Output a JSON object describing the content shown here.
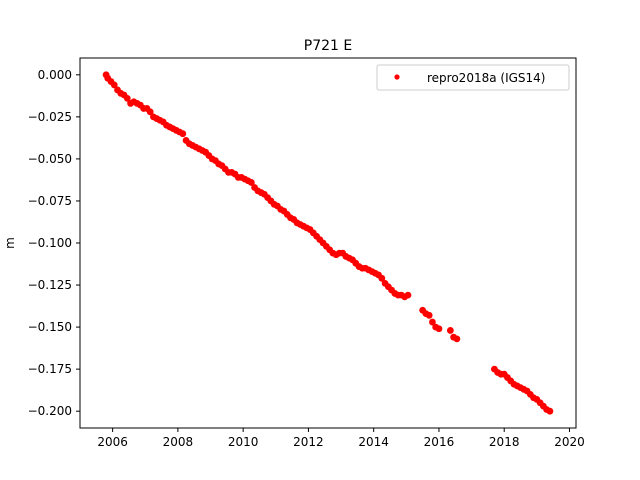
{
  "chart_data": {
    "type": "scatter",
    "title": "P721 E",
    "xlabel": "",
    "ylabel": "m",
    "xlim": [
      2005.0,
      2020.2
    ],
    "ylim": [
      -0.21,
      0.01
    ],
    "xticks": [
      2006,
      2008,
      2010,
      2012,
      2014,
      2016,
      2018,
      2020
    ],
    "yticks": [
      0.0,
      -0.025,
      -0.05,
      -0.075,
      -0.1,
      -0.125,
      -0.15,
      -0.175,
      -0.2
    ],
    "xtick_labels": [
      "2006",
      "2008",
      "2010",
      "2012",
      "2014",
      "2016",
      "2018",
      "2020"
    ],
    "ytick_labels": [
      "0.000",
      "−0.025",
      "−0.050",
      "−0.075",
      "−0.100",
      "−0.125",
      "−0.150",
      "−0.175",
      "−0.200"
    ],
    "grid": false,
    "legend_position": "top-right",
    "series": [
      {
        "name": "repro2018a (IGS14)",
        "color": "#ff0000",
        "marker": "dot",
        "points": [
          [
            2005.8,
            0.0
          ],
          [
            2005.85,
            -0.002
          ],
          [
            2005.95,
            -0.004
          ],
          [
            2006.05,
            -0.006
          ],
          [
            2006.15,
            -0.009
          ],
          [
            2006.25,
            -0.011
          ],
          [
            2006.35,
            -0.012
          ],
          [
            2006.45,
            -0.014
          ],
          [
            2006.55,
            -0.017
          ],
          [
            2006.65,
            -0.016
          ],
          [
            2006.75,
            -0.017
          ],
          [
            2006.85,
            -0.018
          ],
          [
            2006.95,
            -0.02
          ],
          [
            2007.05,
            -0.02
          ],
          [
            2007.15,
            -0.022
          ],
          [
            2007.25,
            -0.025
          ],
          [
            2007.35,
            -0.026
          ],
          [
            2007.45,
            -0.027
          ],
          [
            2007.55,
            -0.028
          ],
          [
            2007.65,
            -0.03
          ],
          [
            2007.75,
            -0.031
          ],
          [
            2007.85,
            -0.032
          ],
          [
            2007.95,
            -0.033
          ],
          [
            2008.05,
            -0.034
          ],
          [
            2008.15,
            -0.035
          ],
          [
            2008.25,
            -0.039
          ],
          [
            2008.35,
            -0.041
          ],
          [
            2008.45,
            -0.042
          ],
          [
            2008.55,
            -0.043
          ],
          [
            2008.65,
            -0.044
          ],
          [
            2008.75,
            -0.045
          ],
          [
            2008.85,
            -0.046
          ],
          [
            2008.95,
            -0.048
          ],
          [
            2009.05,
            -0.05
          ],
          [
            2009.15,
            -0.051
          ],
          [
            2009.25,
            -0.053
          ],
          [
            2009.35,
            -0.054
          ],
          [
            2009.45,
            -0.056
          ],
          [
            2009.55,
            -0.058
          ],
          [
            2009.65,
            -0.058
          ],
          [
            2009.75,
            -0.059
          ],
          [
            2009.85,
            -0.061
          ],
          [
            2009.95,
            -0.061
          ],
          [
            2010.05,
            -0.062
          ],
          [
            2010.15,
            -0.063
          ],
          [
            2010.25,
            -0.064
          ],
          [
            2010.35,
            -0.067
          ],
          [
            2010.45,
            -0.069
          ],
          [
            2010.55,
            -0.07
          ],
          [
            2010.65,
            -0.071
          ],
          [
            2010.75,
            -0.073
          ],
          [
            2010.85,
            -0.075
          ],
          [
            2010.95,
            -0.077
          ],
          [
            2011.05,
            -0.078
          ],
          [
            2011.15,
            -0.08
          ],
          [
            2011.25,
            -0.081
          ],
          [
            2011.35,
            -0.083
          ],
          [
            2011.45,
            -0.085
          ],
          [
            2011.55,
            -0.086
          ],
          [
            2011.65,
            -0.088
          ],
          [
            2011.75,
            -0.089
          ],
          [
            2011.85,
            -0.09
          ],
          [
            2011.95,
            -0.091
          ],
          [
            2012.05,
            -0.092
          ],
          [
            2012.15,
            -0.094
          ],
          [
            2012.25,
            -0.096
          ],
          [
            2012.35,
            -0.098
          ],
          [
            2012.45,
            -0.1
          ],
          [
            2012.55,
            -0.102
          ],
          [
            2012.65,
            -0.104
          ],
          [
            2012.75,
            -0.106
          ],
          [
            2012.85,
            -0.107
          ],
          [
            2012.95,
            -0.106
          ],
          [
            2013.05,
            -0.106
          ],
          [
            2013.15,
            -0.108
          ],
          [
            2013.25,
            -0.109
          ],
          [
            2013.35,
            -0.11
          ],
          [
            2013.45,
            -0.112
          ],
          [
            2013.55,
            -0.114
          ],
          [
            2013.65,
            -0.115
          ],
          [
            2013.75,
            -0.115
          ],
          [
            2013.85,
            -0.116
          ],
          [
            2013.95,
            -0.117
          ],
          [
            2014.05,
            -0.118
          ],
          [
            2014.15,
            -0.119
          ],
          [
            2014.25,
            -0.121
          ],
          [
            2014.35,
            -0.124
          ],
          [
            2014.45,
            -0.126
          ],
          [
            2014.55,
            -0.128
          ],
          [
            2014.65,
            -0.13
          ],
          [
            2014.75,
            -0.131
          ],
          [
            2014.85,
            -0.131
          ],
          [
            2014.95,
            -0.132
          ],
          [
            2015.05,
            -0.131
          ],
          [
            2015.5,
            -0.14
          ],
          [
            2015.6,
            -0.142
          ],
          [
            2015.7,
            -0.143
          ],
          [
            2015.8,
            -0.147
          ],
          [
            2015.9,
            -0.15
          ],
          [
            2016.0,
            -0.151
          ],
          [
            2016.35,
            -0.152
          ],
          [
            2016.45,
            -0.156
          ],
          [
            2016.55,
            -0.157
          ],
          [
            2017.7,
            -0.175
          ],
          [
            2017.8,
            -0.177
          ],
          [
            2017.9,
            -0.178
          ],
          [
            2018.0,
            -0.178
          ],
          [
            2018.1,
            -0.18
          ],
          [
            2018.2,
            -0.182
          ],
          [
            2018.3,
            -0.184
          ],
          [
            2018.4,
            -0.185
          ],
          [
            2018.5,
            -0.186
          ],
          [
            2018.6,
            -0.187
          ],
          [
            2018.7,
            -0.188
          ],
          [
            2018.8,
            -0.19
          ],
          [
            2018.9,
            -0.192
          ],
          [
            2019.0,
            -0.193
          ],
          [
            2019.1,
            -0.195
          ],
          [
            2019.2,
            -0.197
          ],
          [
            2019.3,
            -0.199
          ],
          [
            2019.4,
            -0.2
          ]
        ]
      }
    ]
  }
}
